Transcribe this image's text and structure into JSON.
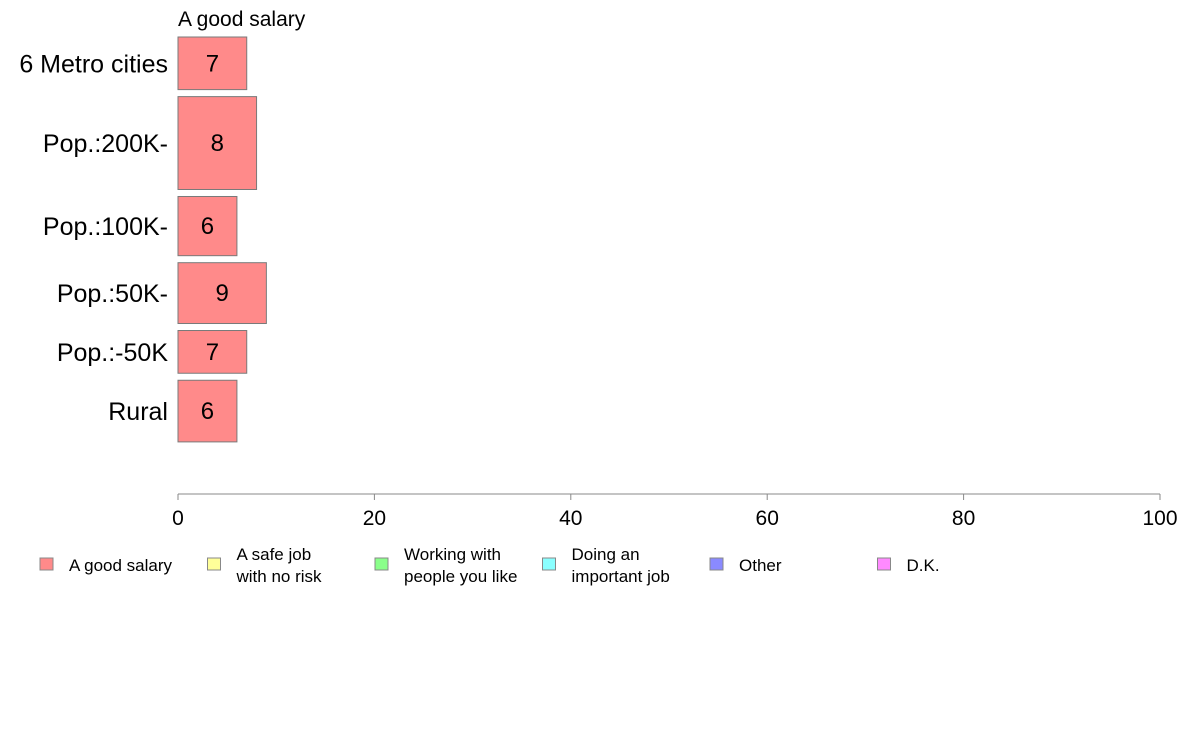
{
  "chart_data": {
    "type": "bar",
    "orientation": "horizontal",
    "title": "A good salary",
    "categories": [
      "6 Metro cities",
      "Pop.:200K-",
      "Pop.:100K-",
      "Pop.:50K-",
      "Pop.:-50K",
      "Rural"
    ],
    "category_shares": [
      0.128,
      0.226,
      0.144,
      0.148,
      0.104,
      0.15
    ],
    "series": [
      {
        "name": "A good salary",
        "values": [
          7,
          8,
          6,
          9,
          7,
          6
        ],
        "color": "#ff8a8a"
      }
    ],
    "bar_labels": [
      "7",
      "8",
      "6",
      "9",
      "7",
      "6"
    ],
    "xlim": [
      0,
      100
    ],
    "x_ticks": [
      0,
      20,
      40,
      60,
      80,
      100
    ],
    "x_tick_labels": [
      "0",
      "20",
      "40",
      "60",
      "80",
      "100"
    ],
    "grid": false,
    "legend_position": "bottom",
    "legend": [
      {
        "label": "A good salary",
        "color": "#ff8a8a"
      },
      {
        "label": "A safe job with no risk",
        "color": "#ffff99"
      },
      {
        "label": "Working with people you like",
        "color": "#8aff8a"
      },
      {
        "label": "Doing an important job",
        "color": "#8affff"
      },
      {
        "label": "Other",
        "color": "#8a8aff"
      },
      {
        "label": "D.K.",
        "color": "#ff8aff"
      }
    ]
  }
}
